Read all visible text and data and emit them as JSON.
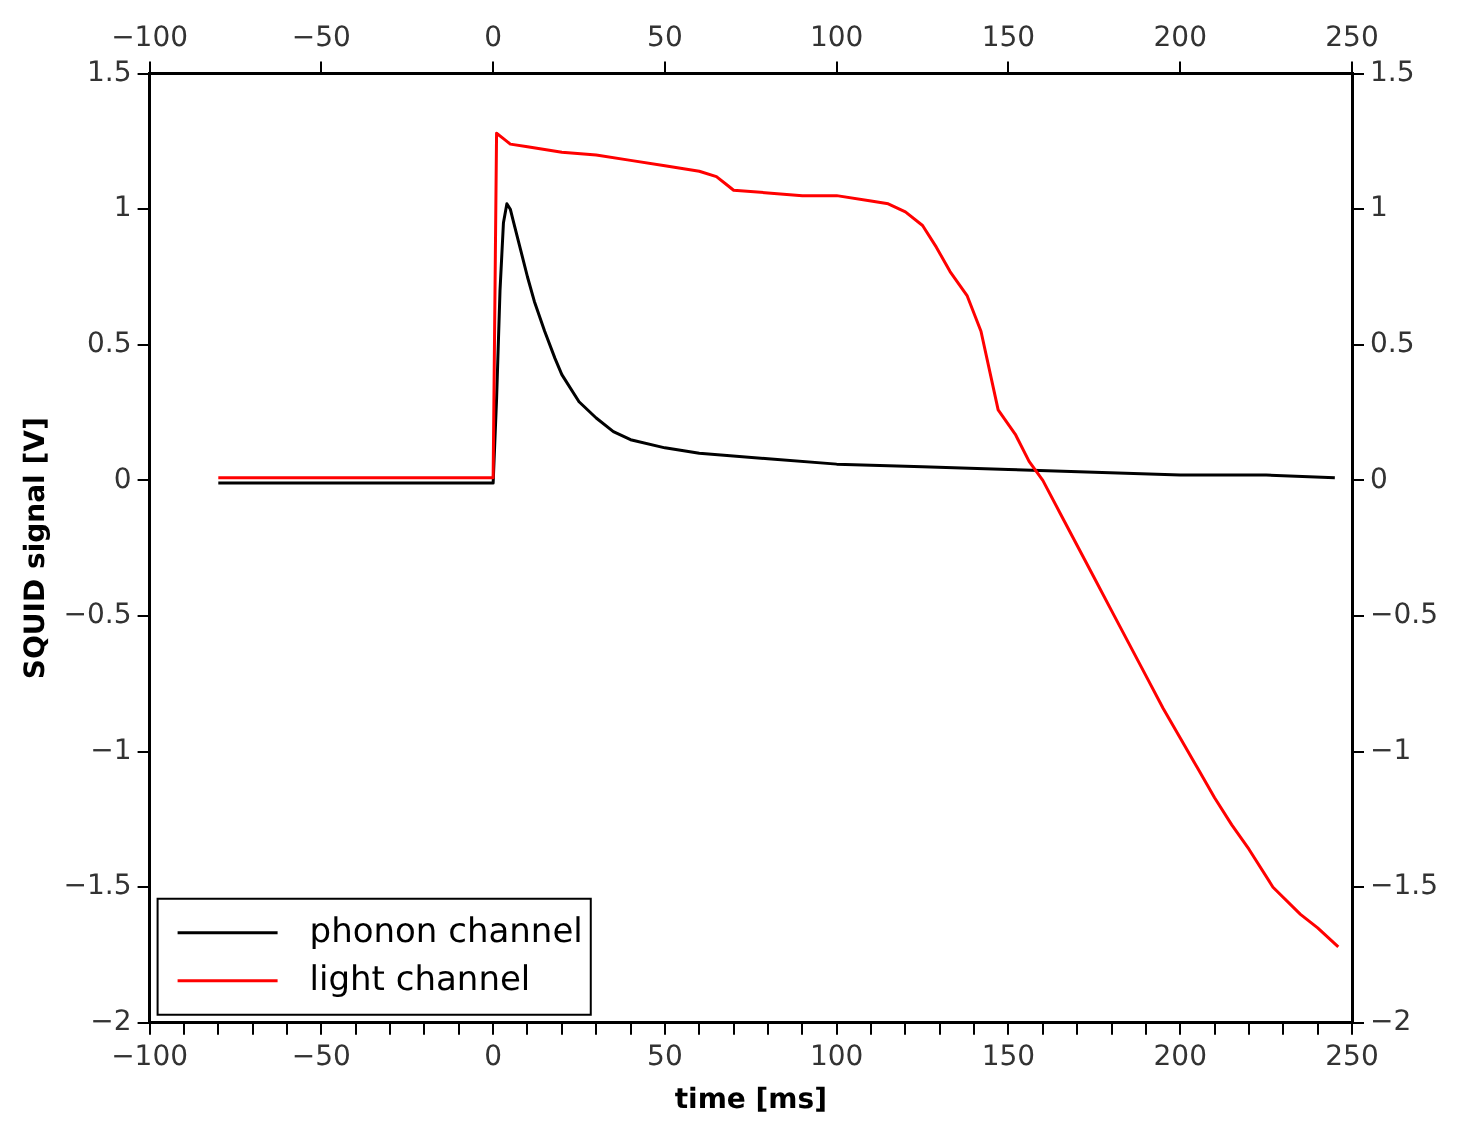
{
  "chart_data": {
    "type": "line",
    "xlabel": "time [ms]",
    "ylabel": "SQUID signal [V]",
    "xlim": [
      -100,
      250
    ],
    "ylim": [
      -2,
      1.5
    ],
    "x2lim": [
      -100,
      250
    ],
    "y2lim": [
      -2,
      1.5
    ],
    "xticks": [
      -100,
      {
        "value": -90,
        "label": null
      },
      {
        "value": -80,
        "label": null
      },
      {
        "value": -70,
        "label": null
      },
      {
        "value": -60,
        "label": null
      },
      -50,
      {
        "value": -40,
        "label": null
      },
      {
        "value": -30,
        "label": null
      },
      {
        "value": -20,
        "label": null
      },
      {
        "value": -10,
        "label": null
      },
      0,
      {
        "value": 10,
        "label": null
      },
      {
        "value": 20,
        "label": null
      },
      {
        "value": 30,
        "label": null
      },
      {
        "value": 40,
        "label": null
      },
      50,
      {
        "value": 60,
        "label": null
      },
      {
        "value": 70,
        "label": null
      },
      {
        "value": 80,
        "label": null
      },
      {
        "value": 90,
        "label": null
      },
      100,
      {
        "value": 110,
        "label": null
      },
      {
        "value": 120,
        "label": null
      },
      {
        "value": 130,
        "label": null
      },
      {
        "value": 140,
        "label": null
      },
      150,
      {
        "value": 160,
        "label": null
      },
      {
        "value": 170,
        "label": null
      },
      {
        "value": 180,
        "label": null
      },
      {
        "value": 190,
        "label": null
      },
      200,
      {
        "value": 210,
        "label": null
      },
      {
        "value": 220,
        "label": null
      },
      {
        "value": 230,
        "label": null
      },
      {
        "value": 240,
        "label": null
      },
      250
    ],
    "x2ticks": [
      -100,
      -50,
      0,
      50,
      100,
      150,
      200,
      250
    ],
    "yticks": [
      -2,
      -1.5,
      -1,
      -0.5,
      0,
      0.5,
      1,
      1.5
    ],
    "y2ticks": [
      -2,
      -1.5,
      -1,
      -0.5,
      0,
      0.5,
      1,
      1.5
    ],
    "legend": "bottom left",
    "grid": false,
    "marker": "none",
    "line_style": "solid",
    "series": [
      {
        "name": "phonon channel",
        "color": "#000000",
        "x": [
          -80,
          -40,
          -1,
          0,
          1,
          2,
          3,
          4,
          5,
          6,
          8,
          10,
          12,
          15,
          18,
          20,
          25,
          30,
          35,
          40,
          50,
          60,
          80,
          100,
          125,
          150,
          175,
          200,
          225,
          245
        ],
        "values": [
          -0.01,
          -0.01,
          -0.01,
          -0.01,
          0.3,
          0.7,
          0.95,
          1.02,
          1.0,
          0.95,
          0.85,
          0.75,
          0.66,
          0.55,
          0.45,
          0.39,
          0.29,
          0.23,
          0.18,
          0.15,
          0.12,
          0.1,
          0.08,
          0.06,
          0.05,
          0.04,
          0.03,
          0.02,
          0.02,
          0.01
        ]
      },
      {
        "name": "light channel",
        "color": "#ff0000",
        "x": [
          -80,
          -40,
          -1,
          0,
          1,
          3,
          5,
          10,
          20,
          30,
          40,
          50,
          60,
          65,
          68,
          70,
          80,
          90,
          100,
          110,
          115,
          120,
          125,
          129,
          133,
          138,
          142,
          147,
          152,
          156,
          160,
          165,
          170,
          175,
          180,
          185,
          190,
          195,
          200,
          205,
          210,
          215,
          220,
          227,
          235,
          240,
          246
        ],
        "values": [
          0.01,
          0.01,
          0.01,
          0.01,
          1.28,
          1.26,
          1.24,
          1.23,
          1.21,
          1.2,
          1.18,
          1.16,
          1.14,
          1.12,
          1.09,
          1.07,
          1.06,
          1.05,
          1.05,
          1.03,
          1.02,
          0.99,
          0.94,
          0.86,
          0.77,
          0.68,
          0.55,
          0.26,
          0.17,
          0.07,
          0,
          -0.12,
          -0.24,
          -0.36,
          -0.48,
          -0.6,
          -0.72,
          -0.84,
          -0.95,
          -1.06,
          -1.17,
          -1.27,
          -1.36,
          -1.5,
          -1.6,
          -1.65,
          -1.72
        ]
      }
    ]
  }
}
